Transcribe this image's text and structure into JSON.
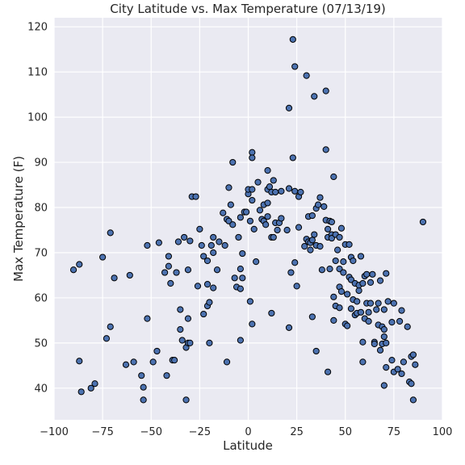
{
  "chart_data": {
    "type": "scatter",
    "title": "City Latitude vs. Max Temperature (07/13/19)",
    "xlabel": "Latitude",
    "ylabel": "Max Temperature (F)",
    "xlim": [
      -100,
      100
    ],
    "ylim": [
      33,
      122
    ],
    "xticks": [
      -100,
      -75,
      -50,
      -25,
      0,
      25,
      50,
      75,
      100
    ],
    "yticks": [
      40,
      50,
      60,
      70,
      80,
      90,
      100,
      110,
      120
    ],
    "grid": true,
    "colors": {
      "background": "#eaeaf2",
      "grid": "#ffffff",
      "marker": "#4c72b0",
      "edge": "#000000"
    },
    "points": [
      [
        -90,
        66.2
      ],
      [
        -87,
        67.4
      ],
      [
        -87,
        46
      ],
      [
        -86,
        39.2
      ],
      [
        -81,
        40
      ],
      [
        -79,
        41
      ],
      [
        -75,
        69
      ],
      [
        -73,
        51
      ],
      [
        -71,
        53.6
      ],
      [
        -71,
        74.4
      ],
      [
        -69,
        64.4
      ],
      [
        -63,
        45.2
      ],
      [
        -61,
        65
      ],
      [
        -59,
        45.8
      ],
      [
        -55,
        42.8
      ],
      [
        -54,
        37.4
      ],
      [
        -54,
        40.2
      ],
      [
        -52,
        71.6
      ],
      [
        -52,
        55.4
      ],
      [
        -49,
        45.8
      ],
      [
        -47,
        48.2
      ],
      [
        -46,
        72.2
      ],
      [
        -43,
        65.6
      ],
      [
        -42,
        42.8
      ],
      [
        -41,
        67
      ],
      [
        -41,
        69.2
      ],
      [
        -40,
        63.2
      ],
      [
        -39,
        46.2
      ],
      [
        -38,
        46.2
      ],
      [
        -37,
        65.6
      ],
      [
        -36,
        72.4
      ],
      [
        -35,
        57.4
      ],
      [
        -35,
        53
      ],
      [
        -34,
        50.6
      ],
      [
        -33,
        73.4
      ],
      [
        -32,
        49
      ],
      [
        -32,
        37.4
      ],
      [
        -31,
        50
      ],
      [
        -31,
        55.4
      ],
      [
        -31,
        66.2
      ],
      [
        -30,
        50
      ],
      [
        -30,
        72.6
      ],
      [
        -29,
        82.4
      ],
      [
        -27,
        82.4
      ],
      [
        -26,
        62.6
      ],
      [
        -25,
        75.2
      ],
      [
        -24,
        71.6
      ],
      [
        -23,
        56.4
      ],
      [
        -23,
        69.2
      ],
      [
        -21,
        58.2
      ],
      [
        -21,
        63
      ],
      [
        -21,
        68.2
      ],
      [
        -20,
        59
      ],
      [
        -20,
        50
      ],
      [
        -19,
        71.6
      ],
      [
        -18,
        70
      ],
      [
        -18,
        62.2
      ],
      [
        -18,
        73.4
      ],
      [
        -16,
        66.2
      ],
      [
        -15,
        72.4
      ],
      [
        -13,
        78.8
      ],
      [
        -12,
        71.6
      ],
      [
        -11,
        77.4
      ],
      [
        -11,
        45.8
      ],
      [
        -10,
        77
      ],
      [
        -10,
        84.4
      ],
      [
        -9,
        80.6
      ],
      [
        -8,
        76.2
      ],
      [
        -8,
        90
      ],
      [
        -7,
        64.4
      ],
      [
        -6,
        62.4
      ],
      [
        -5,
        73.4
      ],
      [
        -4,
        77.8
      ],
      [
        -4,
        50.6
      ],
      [
        -4,
        62
      ],
      [
        -4,
        66.4
      ],
      [
        -3,
        69.8
      ],
      [
        -3,
        64.4
      ],
      [
        -2,
        79
      ],
      [
        -1,
        79
      ],
      [
        0,
        83
      ],
      [
        0,
        84
      ],
      [
        1,
        59.2
      ],
      [
        1,
        77
      ],
      [
        2,
        54.2
      ],
      [
        2,
        81.6
      ],
      [
        2,
        92.2
      ],
      [
        2,
        91
      ],
      [
        2,
        84
      ],
      [
        3,
        75.2
      ],
      [
        4,
        68
      ],
      [
        5,
        85.6
      ],
      [
        6,
        79.4
      ],
      [
        7,
        77.4
      ],
      [
        8,
        80.6
      ],
      [
        8,
        77
      ],
      [
        9,
        76.2
      ],
      [
        10,
        78
      ],
      [
        10,
        88.2
      ],
      [
        10,
        84
      ],
      [
        10,
        81
      ],
      [
        11,
        84.6
      ],
      [
        12,
        73.4
      ],
      [
        12,
        56.6
      ],
      [
        12,
        83.4
      ],
      [
        13,
        86
      ],
      [
        13,
        73.4
      ],
      [
        14,
        83.4
      ],
      [
        14,
        76.6
      ],
      [
        15,
        75
      ],
      [
        16,
        76.6
      ],
      [
        17,
        77.6
      ],
      [
        17,
        83.6
      ],
      [
        20,
        75
      ],
      [
        21,
        53.4
      ],
      [
        21,
        84.2
      ],
      [
        21,
        102
      ],
      [
        22,
        65.6
      ],
      [
        23,
        117.2
      ],
      [
        23,
        91
      ],
      [
        24,
        111.2
      ],
      [
        24,
        83.6
      ],
      [
        24,
        67.8
      ],
      [
        25,
        62.6
      ],
      [
        26,
        82.4
      ],
      [
        26,
        75.6
      ],
      [
        27,
        83.4
      ],
      [
        29,
        71.4
      ],
      [
        30,
        109.2
      ],
      [
        30,
        73
      ],
      [
        31,
        72.4
      ],
      [
        31,
        78
      ],
      [
        32,
        70.6
      ],
      [
        32,
        72.2
      ],
      [
        33,
        78.2
      ],
      [
        33,
        72.8
      ],
      [
        33,
        55.8
      ],
      [
        34,
        104.6
      ],
      [
        34,
        74
      ],
      [
        35,
        79.8
      ],
      [
        35,
        71.6
      ],
      [
        35,
        48.2
      ],
      [
        36,
        80.6
      ],
      [
        37,
        82.2
      ],
      [
        37,
        71.4
      ],
      [
        38,
        66.2
      ],
      [
        39,
        80.2
      ],
      [
        40,
        92.8
      ],
      [
        40,
        105.8
      ],
      [
        40,
        77.2
      ],
      [
        41,
        43.6
      ],
      [
        41,
        73.4
      ],
      [
        41,
        75.2
      ],
      [
        42,
        66.4
      ],
      [
        42,
        77
      ],
      [
        43,
        74
      ],
      [
        43,
        76.8
      ],
      [
        43,
        73.2
      ],
      [
        44,
        86.8
      ],
      [
        44,
        55
      ],
      [
        44,
        60.2
      ],
      [
        45,
        68.2
      ],
      [
        45,
        74
      ],
      [
        45,
        58.2
      ],
      [
        46,
        70.6
      ],
      [
        47,
        66.4
      ],
      [
        47,
        73.4
      ],
      [
        47,
        57.8
      ],
      [
        47,
        62.4
      ],
      [
        48,
        75.4
      ],
      [
        48,
        61.4
      ],
      [
        49,
        68
      ],
      [
        49,
        65.6
      ],
      [
        50,
        54.2
      ],
      [
        50,
        71.8
      ],
      [
        51,
        53.8
      ],
      [
        51,
        60.8
      ],
      [
        52,
        71.8
      ],
      [
        52,
        64.6
      ],
      [
        53,
        64
      ],
      [
        53,
        57.6
      ],
      [
        53,
        69
      ],
      [
        54,
        68.2
      ],
      [
        54,
        59.6
      ],
      [
        55,
        63.2
      ],
      [
        55,
        56.2
      ],
      [
        56,
        59.2
      ],
      [
        56,
        56.6
      ],
      [
        57,
        61.6
      ],
      [
        57,
        62.8
      ],
      [
        58,
        69.2
      ],
      [
        58,
        56.8
      ],
      [
        59,
        63.2
      ],
      [
        59,
        45.8
      ],
      [
        59,
        50.2
      ],
      [
        60,
        64.8
      ],
      [
        60,
        55.4
      ],
      [
        61,
        65.2
      ],
      [
        61,
        58.8
      ],
      [
        62,
        54.8
      ],
      [
        62,
        56.8
      ],
      [
        63,
        58.8
      ],
      [
        63,
        63.4
      ],
      [
        64,
        65.2
      ],
      [
        65,
        50.2
      ],
      [
        65,
        49.8
      ],
      [
        66,
        57.4
      ],
      [
        67,
        58.8
      ],
      [
        67,
        54
      ],
      [
        68,
        63.8
      ],
      [
        68,
        48.4
      ],
      [
        69,
        53.6
      ],
      [
        69,
        49.8
      ],
      [
        70,
        51.4
      ],
      [
        70,
        53
      ],
      [
        70,
        57.4
      ],
      [
        70,
        40.6
      ],
      [
        71,
        65.4
      ],
      [
        71,
        44.6
      ],
      [
        71,
        50
      ],
      [
        72,
        59.2
      ],
      [
        74,
        46.2
      ],
      [
        74,
        54.6
      ],
      [
        75,
        43.6
      ],
      [
        75,
        58.8
      ],
      [
        77,
        44.2
      ],
      [
        78,
        54.8
      ],
      [
        79,
        57.2
      ],
      [
        79,
        43.2
      ],
      [
        80,
        45.8
      ],
      [
        82,
        53.6
      ],
      [
        83,
        41.4
      ],
      [
        84,
        47
      ],
      [
        84,
        41
      ],
      [
        85,
        37.4
      ],
      [
        85,
        47.4
      ],
      [
        86,
        45.2
      ],
      [
        90,
        76.8
      ]
    ]
  }
}
